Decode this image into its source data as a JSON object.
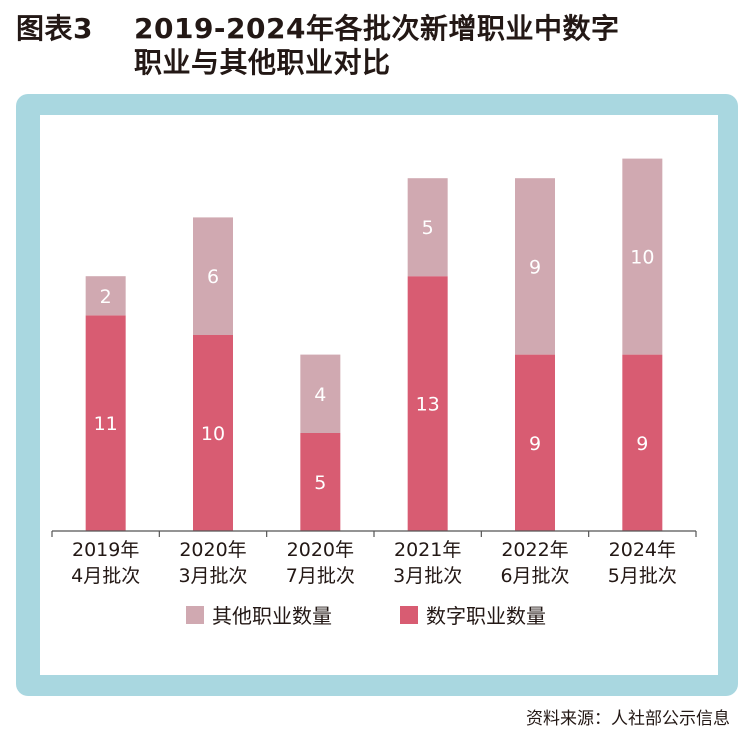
{
  "title": {
    "prefix": "图表3",
    "line1": "2019-2024年各批次新增职业中数字",
    "line2": "职业与其他职业对比"
  },
  "source": "资料来源：人社部公示信息",
  "chart_data": {
    "type": "bar",
    "stacked": true,
    "categories": [
      [
        "2019年",
        "4月批次"
      ],
      [
        "2020年",
        "3月批次"
      ],
      [
        "2020年",
        "7月批次"
      ],
      [
        "2021年",
        "3月批次"
      ],
      [
        "2022年",
        "6月批次"
      ],
      [
        "2024年",
        "5月批次"
      ]
    ],
    "series": [
      {
        "name": "数字职业数量",
        "values": [
          11,
          10,
          5,
          13,
          9,
          9
        ],
        "color": "#d85c72"
      },
      {
        "name": "其他职业数量",
        "values": [
          2,
          6,
          4,
          5,
          9,
          10
        ],
        "color": "#d0a9b1"
      }
    ],
    "legend": [
      "其他职业数量",
      "数字职业数量"
    ],
    "ylim": [
      0,
      19
    ],
    "grid": false,
    "legend_position": "bottom"
  }
}
